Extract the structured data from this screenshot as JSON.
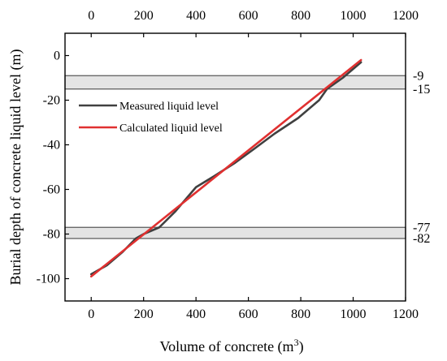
{
  "chart_data": {
    "type": "line",
    "xlabel": "Volume of concrete (m",
    "xlabel_sup": "3",
    "xlabel_end": ")",
    "ylabel": "Burial depth of concrete liquid level (m)",
    "xlim": [
      -100,
      1200
    ],
    "ylim": [
      -110,
      10
    ],
    "x_ticks": [
      0,
      200,
      400,
      600,
      800,
      1000,
      1200
    ],
    "x_tick_labels": [
      "0",
      "200",
      "400",
      "600",
      "800",
      "1000",
      "1200"
    ],
    "y_ticks": [
      0,
      -20,
      -40,
      -60,
      -80,
      -100
    ],
    "y_tick_labels": [
      "0",
      "-20",
      "-40",
      "-60",
      "-80",
      "-100"
    ],
    "grid": false,
    "legend_position": "upper-left",
    "bands": [
      {
        "y1": -15,
        "y2": -9,
        "upper_label": "-9",
        "lower_label": "-15"
      },
      {
        "y1": -82,
        "y2": -77,
        "upper_label": "-77",
        "lower_label": "-82"
      }
    ],
    "series": [
      {
        "name": "Measured liquid level",
        "color": "#404040",
        "points": [
          [
            0,
            -98
          ],
          [
            60,
            -94
          ],
          [
            120,
            -88
          ],
          [
            170,
            -82
          ],
          [
            200,
            -80
          ],
          [
            260,
            -77
          ],
          [
            320,
            -70
          ],
          [
            400,
            -59
          ],
          [
            470,
            -54
          ],
          [
            550,
            -48
          ],
          [
            620,
            -42
          ],
          [
            700,
            -35
          ],
          [
            790,
            -28
          ],
          [
            870,
            -20
          ],
          [
            900,
            -15
          ],
          [
            960,
            -10
          ],
          [
            1000,
            -6
          ],
          [
            1030,
            -3
          ]
        ]
      },
      {
        "name": "Calculated liquid level",
        "color": "#e03030",
        "points": [
          [
            0,
            -99
          ],
          [
            1030,
            -2
          ]
        ]
      }
    ]
  }
}
